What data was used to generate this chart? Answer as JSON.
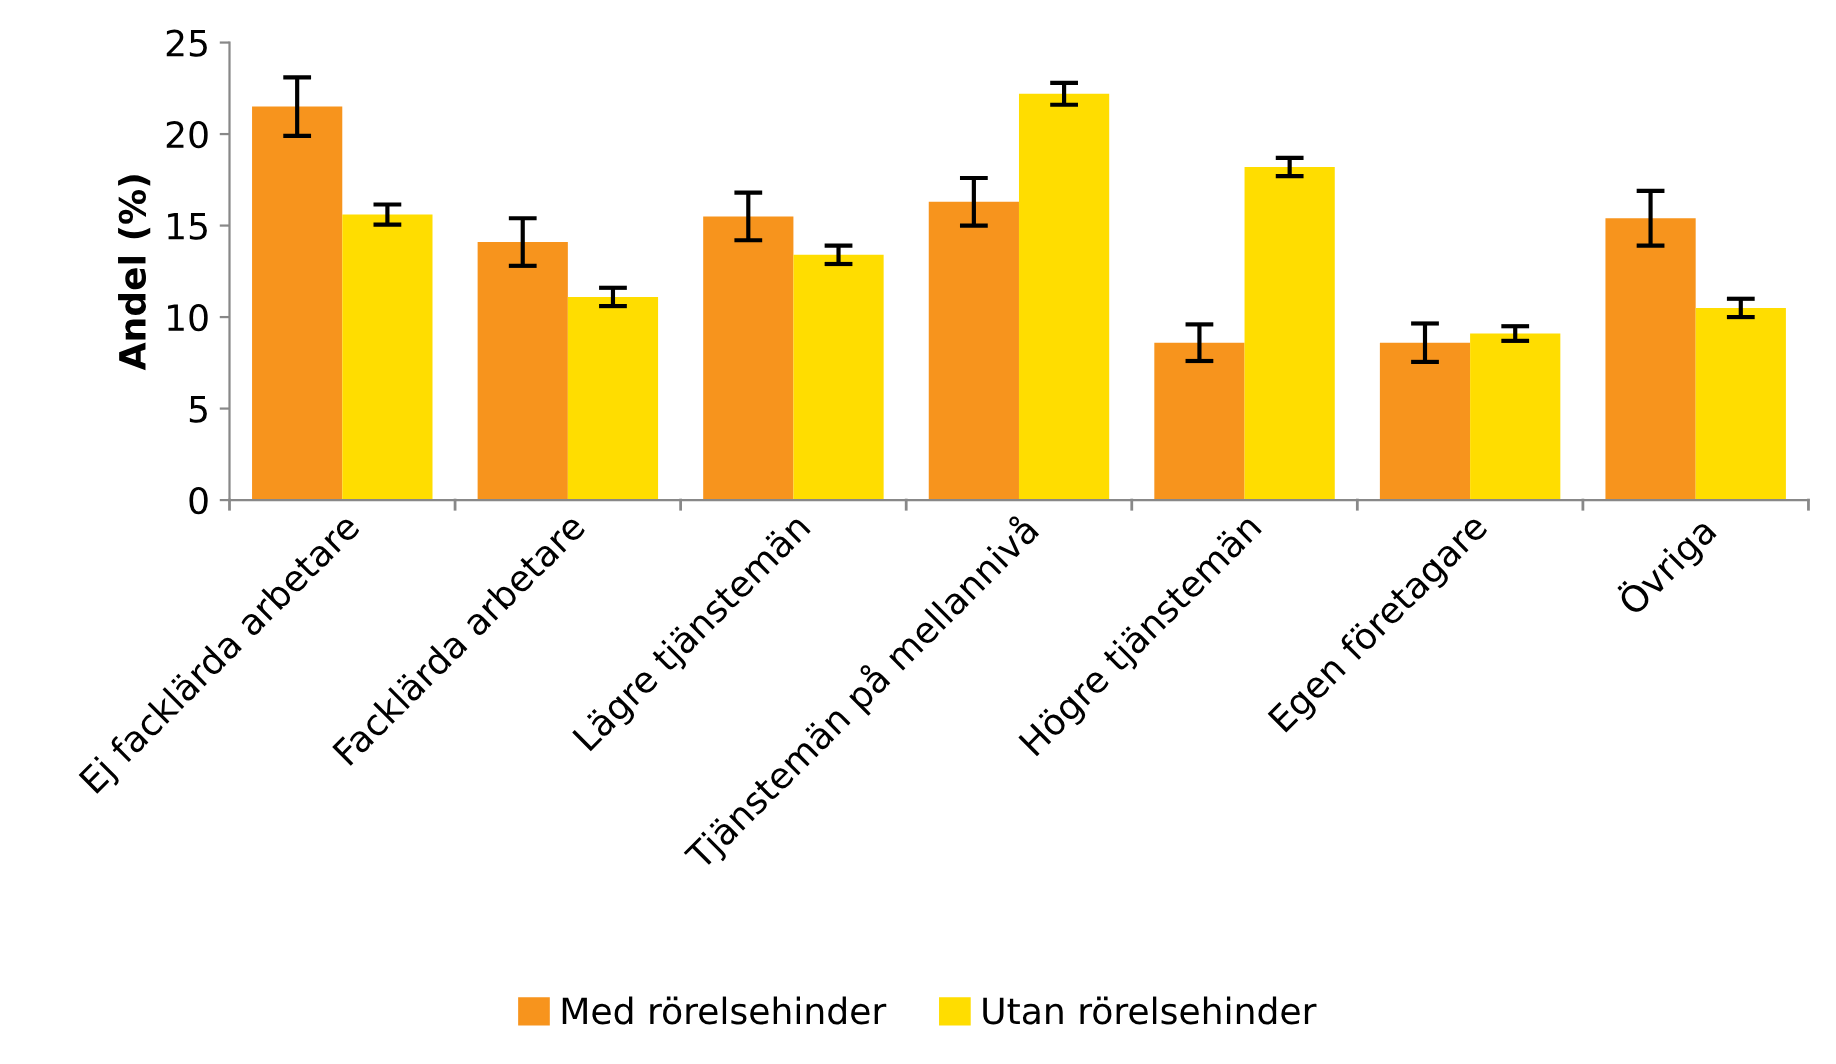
{
  "chart_data": {
    "type": "bar",
    "ylabel": "Andel (%)",
    "categories": [
      "Ej facklärda arbetare",
      "Facklärda arbetare",
      "Lägre tjänstemän",
      "Tjänstemän på mellannivå",
      "Högre tjänstemän",
      "Egen företagare",
      "Övriga"
    ],
    "series": [
      {
        "name": "Med rörelsehinder",
        "color": "#f7941d",
        "values": [
          21.5,
          14.1,
          15.5,
          16.3,
          8.6,
          8.6,
          15.4
        ],
        "errors": [
          1.6,
          1.3,
          1.3,
          1.3,
          1.0,
          1.05,
          1.5
        ]
      },
      {
        "name": "Utan rörelsehinder",
        "color": "#ffdd00",
        "values": [
          15.6,
          11.1,
          13.4,
          22.2,
          18.2,
          9.1,
          10.5
        ],
        "errors": [
          0.55,
          0.5,
          0.5,
          0.6,
          0.5,
          0.4,
          0.5
        ]
      }
    ],
    "ylim": [
      0,
      25
    ],
    "yticks": [
      0,
      5,
      10,
      15,
      20,
      25
    ],
    "grid": false,
    "legend": "bottom"
  }
}
